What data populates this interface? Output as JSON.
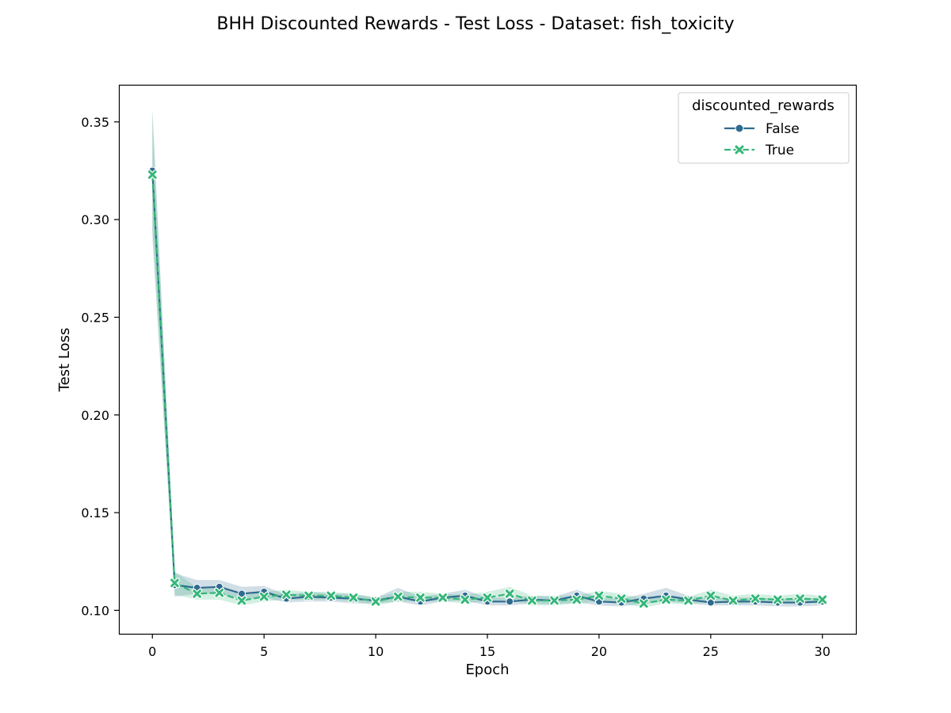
{
  "chart_data": {
    "type": "line",
    "title": "BHH Discounted Rewards - Test Loss - Dataset: fish_toxicity",
    "xlabel": "Epoch",
    "ylabel": "Test Loss",
    "xlim": [
      -1.5,
      31.5
    ],
    "ylim": [
      0.088,
      0.369
    ],
    "xticks": [
      0,
      5,
      10,
      15,
      20,
      25,
      30
    ],
    "yticks": [
      0.1,
      0.15,
      0.2,
      0.25,
      0.3,
      0.35
    ],
    "ytick_labels": [
      "0.10",
      "0.15",
      "0.20",
      "0.25",
      "0.30",
      "0.35"
    ],
    "grid": false,
    "legend": {
      "title": "discounted_rewards",
      "placement": "top-right"
    },
    "x": [
      0,
      1,
      2,
      3,
      4,
      5,
      6,
      7,
      8,
      9,
      10,
      11,
      12,
      13,
      14,
      15,
      16,
      17,
      18,
      19,
      20,
      21,
      22,
      23,
      24,
      25,
      26,
      27,
      28,
      29,
      30
    ],
    "series": [
      {
        "name": "False",
        "color": "#2f6b8e",
        "marker": "circle",
        "dash": "solid",
        "values": [
          0.325,
          0.113,
          0.1115,
          0.112,
          0.1085,
          0.1095,
          0.106,
          0.107,
          0.1065,
          0.106,
          0.105,
          0.107,
          0.1045,
          0.1065,
          0.1075,
          0.1045,
          0.1045,
          0.1055,
          0.105,
          0.1075,
          0.1045,
          0.104,
          0.106,
          0.1075,
          0.1055,
          0.104,
          0.1045,
          0.1045,
          0.104,
          0.104,
          0.1045
        ],
        "lower": [
          0.295,
          0.107,
          0.1085,
          0.1085,
          0.1055,
          0.1065,
          0.104,
          0.1045,
          0.1045,
          0.1035,
          0.1035,
          0.1045,
          0.1025,
          0.1045,
          0.105,
          0.1025,
          0.1025,
          0.1035,
          0.103,
          0.104,
          0.1025,
          0.102,
          0.1035,
          0.1045,
          0.1035,
          0.1025,
          0.1025,
          0.1025,
          0.102,
          0.102,
          0.1025
        ],
        "upper": [
          0.356,
          0.119,
          0.1155,
          0.1155,
          0.112,
          0.1125,
          0.108,
          0.1095,
          0.1085,
          0.1085,
          0.1065,
          0.1115,
          0.107,
          0.1085,
          0.1105,
          0.1065,
          0.1065,
          0.1075,
          0.107,
          0.1105,
          0.1065,
          0.106,
          0.1085,
          0.1115,
          0.1075,
          0.106,
          0.1065,
          0.1065,
          0.106,
          0.106,
          0.1065
        ]
      },
      {
        "name": "True",
        "color": "#35b779",
        "marker": "x",
        "dash": "dashed",
        "values": [
          0.323,
          0.114,
          0.1085,
          0.109,
          0.105,
          0.107,
          0.108,
          0.1075,
          0.1075,
          0.1065,
          0.1045,
          0.107,
          0.1065,
          0.1065,
          0.1055,
          0.1065,
          0.1085,
          0.105,
          0.105,
          0.1055,
          0.1075,
          0.106,
          0.1035,
          0.1055,
          0.105,
          0.1075,
          0.105,
          0.106,
          0.1055,
          0.106,
          0.1055
        ],
        "lower": [
          0.29,
          0.108,
          0.1055,
          0.1055,
          0.1025,
          0.1045,
          0.1055,
          0.1055,
          0.1055,
          0.1045,
          0.1025,
          0.1045,
          0.1045,
          0.1045,
          0.1035,
          0.1045,
          0.1055,
          0.1025,
          0.1025,
          0.1035,
          0.1045,
          0.1035,
          0.1015,
          0.1035,
          0.103,
          0.1045,
          0.103,
          0.104,
          0.1035,
          0.104,
          0.1035
        ],
        "upper": [
          0.356,
          0.12,
          0.1115,
          0.1115,
          0.1075,
          0.1095,
          0.1105,
          0.1095,
          0.1095,
          0.1085,
          0.1065,
          0.1095,
          0.1095,
          0.1085,
          0.108,
          0.1095,
          0.112,
          0.1075,
          0.1075,
          0.1075,
          0.11,
          0.1085,
          0.106,
          0.1075,
          0.107,
          0.1105,
          0.1075,
          0.1085,
          0.1075,
          0.1085,
          0.1075
        ]
      }
    ]
  }
}
